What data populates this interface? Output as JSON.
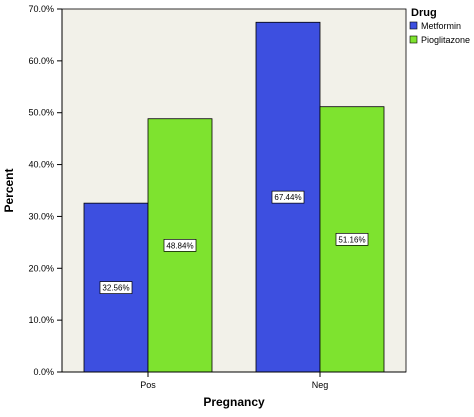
{
  "chart_data": {
    "type": "bar",
    "categories": [
      "Pos",
      "Neg"
    ],
    "series": [
      {
        "name": "Metformin",
        "values": [
          32.56,
          67.44
        ],
        "labels": [
          "32.56%",
          "67.44%"
        ],
        "color": "#3d4fe0"
      },
      {
        "name": "Pioglitazone",
        "values": [
          48.84,
          51.16
        ],
        "labels": [
          "48.84%",
          "51.16%"
        ],
        "color": "#7ee32f"
      }
    ],
    "title": "",
    "xlabel": "Pregnancy",
    "ylabel": "Percent",
    "ylim": [
      0,
      70
    ],
    "yticks": [
      "0.0%",
      "10.0%",
      "20.0%",
      "30.0%",
      "40.0%",
      "50.0%",
      "60.0%",
      "70.0%"
    ],
    "legend": {
      "title": "Drug",
      "position": "top-right"
    },
    "grid": false,
    "plot_background": "#f2f1e9"
  }
}
